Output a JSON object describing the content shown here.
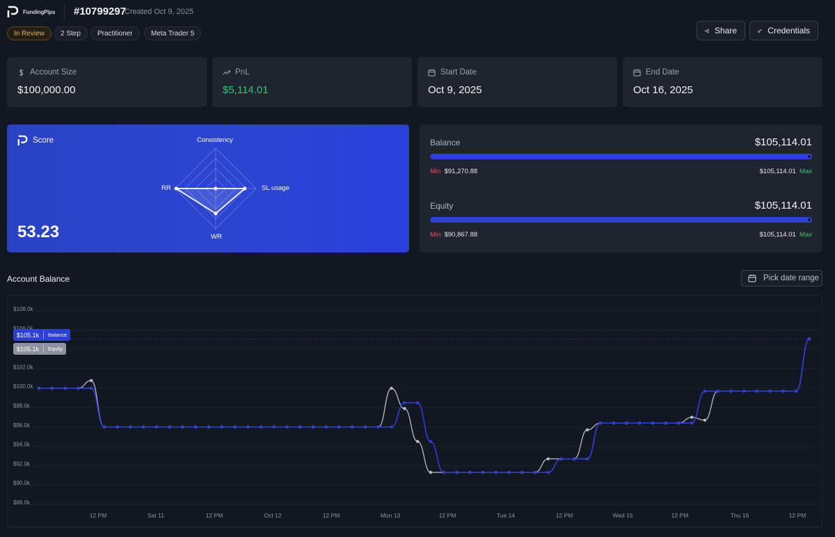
{
  "header": {
    "brand": "FundingPips",
    "account_id": "#10799297",
    "created": "Created Oct 9, 2025",
    "tags": [
      "In Review",
      "2 Step",
      "Practitioner",
      "Meta Trader 5"
    ],
    "share_label": "Share",
    "credentials_label": "Credentials"
  },
  "stats": [
    {
      "label": "Account Size",
      "value": "$100,000.00",
      "icon": "dollar-icon"
    },
    {
      "label": "PnL",
      "value": "$5,114.01",
      "icon": "trend-up-icon"
    },
    {
      "label": "Start Date",
      "value": "Oct 9, 2025",
      "icon": "calendar-icon"
    },
    {
      "label": "End Date",
      "value": "Oct 16, 2025",
      "icon": "calendar-icon"
    }
  ],
  "score": {
    "title": "Score",
    "value": "53.23",
    "axes": {
      "top": "Consistency",
      "right": "SL usage",
      "bottom": "WR",
      "left": "RR"
    },
    "levels": {
      "Consistency": 0,
      "SL usage": 0.72,
      "WR": 0.62,
      "RR": 0.98
    }
  },
  "balance": {
    "title": "Balance",
    "value": "$105,114.01",
    "min_label": "Min",
    "min": "$91,270.88",
    "max_label": "Max",
    "max": "$105,114.01",
    "fill": 1.0
  },
  "equity": {
    "title": "Equity",
    "value": "$105,114.01",
    "min_label": "Min",
    "min": "$90,867.88",
    "max_label": "Max",
    "max": "$105,114.01",
    "fill": 1.0
  },
  "account_balance": {
    "title": "Account Balance",
    "pick_label": "Pick date range",
    "tooltip": {
      "balance_value": "$105.1k",
      "balance_label": "Balance",
      "equity_value": "$105.1k",
      "equity_label": "Equity"
    }
  },
  "colors": {
    "accent": "#2c3fd9",
    "positive": "#2fc774",
    "negative": "#ee4b5a",
    "equity_line": "#b8bcc6"
  },
  "chart_data": {
    "type": "line",
    "y_ticks": [
      "$88.0k",
      "$90.0k",
      "$92.0k",
      "$94.0k",
      "$96.0k",
      "$98.0k",
      "$100.0k",
      "$102.0k",
      "$104.0k",
      "$106.0k",
      "$108.0k"
    ],
    "ylim": [
      88,
      108.5
    ],
    "x_ticks": [
      "12 PM",
      "Sat 11",
      "12 PM",
      "Oct 12",
      "12 PM",
      "Mon 13",
      "12 PM",
      "Tue 14",
      "12 PM",
      "Wed 15",
      "12 PM",
      "Thu 16",
      "12 PM"
    ],
    "grid": true,
    "reference_line": 105.1,
    "series": [
      {
        "name": "Balance",
        "values": [
          100,
          100,
          100,
          100,
          100,
          96,
          96,
          96,
          96,
          96,
          96,
          96,
          96,
          96,
          96,
          96,
          96,
          96,
          96,
          96,
          96,
          96,
          96,
          96,
          96,
          96,
          96,
          96,
          98.5,
          98.5,
          94.5,
          91.3,
          91.3,
          91.3,
          91.3,
          91.3,
          91.3,
          91.3,
          91.3,
          91.3,
          92.7,
          92.7,
          92.7,
          96.4,
          96.4,
          96.4,
          96.4,
          96.4,
          96.4,
          96.4,
          96.4,
          99.7,
          99.7,
          99.7,
          99.7,
          99.7,
          99.7,
          99.7,
          99.7,
          105.1
        ]
      },
      {
        "name": "Equity",
        "values": [
          100,
          100,
          100,
          100,
          100.8,
          96,
          96,
          96,
          96,
          96,
          96,
          96,
          96,
          96,
          96,
          96,
          96,
          96,
          96,
          96,
          96,
          96,
          96,
          96,
          96,
          96,
          96,
          100,
          97.9,
          94.5,
          91.3,
          91.3,
          91.3,
          91.3,
          91.3,
          91.3,
          91.3,
          91.3,
          91.3,
          92.7,
          92.7,
          92.7,
          95.7,
          96.4,
          96.4,
          96.4,
          96.4,
          96.4,
          96.4,
          96.4,
          97,
          96.7,
          99.7,
          99.7,
          99.7,
          99.7,
          99.7,
          99.7,
          99.7,
          105.1
        ]
      }
    ]
  }
}
